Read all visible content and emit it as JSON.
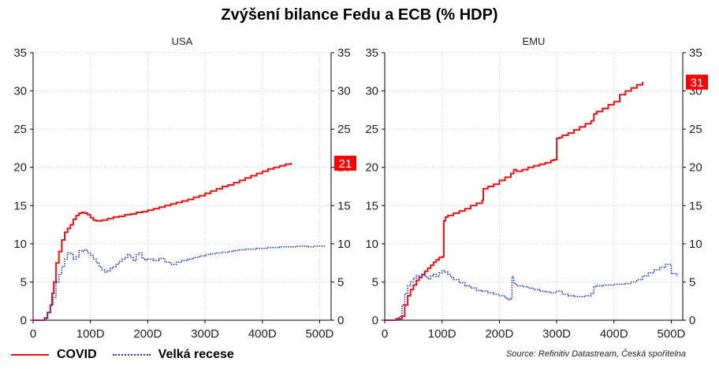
{
  "title": "Zvýšení bilance Fedu a ECB (% HDP)",
  "legend": [
    {
      "label": "COVID",
      "color": "#ee1111",
      "style": "solid"
    },
    {
      "label": "Velká recese",
      "color": "#2233dd",
      "style": "dotted"
    }
  ],
  "source": "Source: Refinitiv Datastream, Česká spořitelna",
  "chart_data": [
    {
      "type": "line",
      "title": "USA",
      "xlim": [
        0,
        520
      ],
      "ylim": [
        0,
        35
      ],
      "x_ticks": [
        "0",
        "100D",
        "200D",
        "300D",
        "400D",
        "500D"
      ],
      "y_ticks": [
        "0",
        "5",
        "10",
        "15",
        "20",
        "25",
        "30",
        "35"
      ],
      "grid": true,
      "end_label": "21",
      "series": [
        {
          "name": "COVID",
          "color": "#ee1111",
          "style": "solid",
          "step": true,
          "x": [
            0,
            10,
            20,
            25,
            30,
            33,
            36,
            40,
            45,
            50,
            55,
            60,
            65,
            70,
            75,
            80,
            85,
            90,
            95,
            100,
            105,
            110,
            115,
            120,
            130,
            140,
            150,
            160,
            170,
            180,
            190,
            200,
            210,
            220,
            230,
            240,
            250,
            260,
            270,
            280,
            290,
            300,
            310,
            320,
            330,
            340,
            350,
            360,
            370,
            380,
            390,
            400,
            410,
            420,
            430,
            440,
            450
          ],
          "y": [
            0,
            0,
            0.3,
            1,
            2,
            3.5,
            5,
            7.5,
            9,
            10.5,
            11.5,
            12,
            12.5,
            13.2,
            13.7,
            14,
            14.1,
            14,
            13.8,
            13.4,
            13.1,
            13,
            13,
            13.1,
            13.3,
            13.5,
            13.6,
            13.8,
            13.9,
            14.1,
            14.2,
            14.4,
            14.6,
            14.8,
            15,
            15.2,
            15.4,
            15.6,
            15.8,
            16.1,
            16.3,
            16.6,
            16.9,
            17.2,
            17.5,
            17.7,
            18,
            18.3,
            18.6,
            18.9,
            19.2,
            19.5,
            19.8,
            20,
            20.2,
            20.4,
            20.6
          ]
        },
        {
          "name": "Velká recese",
          "color": "#2233dd",
          "style": "dotted",
          "step": true,
          "x": [
            0,
            15,
            20,
            25,
            30,
            35,
            40,
            45,
            50,
            55,
            60,
            65,
            70,
            75,
            80,
            85,
            90,
            95,
            100,
            105,
            110,
            115,
            120,
            125,
            130,
            135,
            140,
            145,
            150,
            155,
            160,
            165,
            170,
            175,
            180,
            185,
            190,
            195,
            200,
            210,
            220,
            230,
            240,
            250,
            260,
            270,
            280,
            290,
            300,
            310,
            320,
            330,
            340,
            350,
            360,
            370,
            380,
            390,
            400,
            410,
            420,
            430,
            440,
            450,
            460,
            470,
            480,
            490,
            500,
            510
          ],
          "y": [
            0,
            0,
            0.2,
            1,
            2,
            3,
            5,
            6,
            7,
            8,
            8.8,
            8.7,
            8,
            8.3,
            9.1,
            9,
            9.2,
            8.8,
            8.5,
            8,
            7.5,
            7,
            6.6,
            6.3,
            6.5,
            6.8,
            7,
            7.3,
            7.7,
            8,
            8.2,
            8.6,
            8.2,
            7.8,
            8.6,
            8.8,
            8.1,
            7.9,
            8,
            7.8,
            8.1,
            7.6,
            7.3,
            7.6,
            7.8,
            8,
            8.2,
            8.4,
            8.6,
            8.7,
            8.8,
            8.9,
            9,
            9.1,
            9.2,
            9.3,
            9.3,
            9.4,
            9.4,
            9.5,
            9.5,
            9.6,
            9.6,
            9.6,
            9.7,
            9.7,
            9.6,
            9.7,
            9.7,
            9.6
          ]
        }
      ]
    },
    {
      "type": "line",
      "title": "EMU",
      "xlim": [
        0,
        520
      ],
      "ylim": [
        0,
        35
      ],
      "x_ticks": [
        "0",
        "100D",
        "200D",
        "300D",
        "400D",
        "500D"
      ],
      "y_ticks": [
        "0",
        "5",
        "10",
        "15",
        "20",
        "25",
        "30",
        "35"
      ],
      "grid": true,
      "end_label": "31",
      "series": [
        {
          "name": "COVID",
          "color": "#ee1111",
          "style": "solid",
          "step": true,
          "x": [
            0,
            20,
            30,
            35,
            40,
            45,
            50,
            55,
            60,
            65,
            70,
            75,
            80,
            85,
            90,
            95,
            100,
            103,
            106,
            110,
            120,
            130,
            140,
            150,
            160,
            170,
            172,
            180,
            190,
            200,
            210,
            220,
            225,
            230,
            240,
            250,
            260,
            270,
            280,
            290,
            295,
            300,
            305,
            310,
            320,
            330,
            340,
            350,
            360,
            365,
            370,
            380,
            390,
            400,
            410,
            420,
            430,
            440,
            450
          ],
          "y": [
            0,
            0.2,
            0.5,
            2,
            3.2,
            4,
            4.6,
            5.2,
            5.6,
            6,
            6.4,
            6.8,
            7.2,
            7.6,
            7.9,
            8.2,
            8.3,
            13,
            13.5,
            13.7,
            14,
            14.3,
            14.6,
            15,
            15.3,
            15.7,
            17.2,
            17.5,
            17.8,
            18.3,
            18.7,
            19.2,
            19.7,
            19.5,
            19.7,
            20,
            20.2,
            20.4,
            20.6,
            20.9,
            21,
            23.8,
            23.9,
            24.2,
            24.5,
            24.9,
            25.3,
            25.7,
            26.1,
            27,
            27.3,
            27.7,
            28.2,
            28.6,
            29.5,
            30,
            30.4,
            30.8,
            31.2
          ]
        },
        {
          "name": "Velká recese",
          "color": "#2233dd",
          "style": "dotted",
          "step": true,
          "x": [
            0,
            20,
            25,
            30,
            35,
            40,
            45,
            50,
            55,
            60,
            65,
            70,
            75,
            80,
            85,
            90,
            95,
            100,
            105,
            110,
            115,
            120,
            130,
            140,
            150,
            160,
            170,
            180,
            190,
            200,
            210,
            215,
            220,
            222,
            225,
            230,
            240,
            250,
            260,
            270,
            280,
            290,
            300,
            310,
            320,
            330,
            340,
            350,
            360,
            365,
            370,
            380,
            390,
            400,
            410,
            420,
            430,
            440,
            450,
            460,
            470,
            480,
            490,
            500,
            510
          ],
          "y": [
            0,
            0,
            0.5,
            2,
            3.5,
            4.5,
            5,
            5.5,
            5.8,
            5.6,
            6,
            5.7,
            5.4,
            5.8,
            6,
            5.7,
            6.2,
            6.5,
            6.3,
            6,
            5.6,
            5.3,
            4.9,
            4.5,
            4.2,
            3.9,
            3.8,
            3.6,
            3.4,
            3.2,
            2.9,
            2.7,
            2.8,
            5.7,
            4.8,
            4.5,
            4.4,
            4.2,
            4,
            3.8,
            3.7,
            3.6,
            3.8,
            3.4,
            3.2,
            3.1,
            3.1,
            3.2,
            3.5,
            4.4,
            4.5,
            4.6,
            4.6,
            4.7,
            4.7,
            4.8,
            5,
            5.3,
            5.8,
            6.2,
            6.6,
            6.9,
            7.3,
            6.1,
            5.7
          ]
        }
      ]
    }
  ]
}
